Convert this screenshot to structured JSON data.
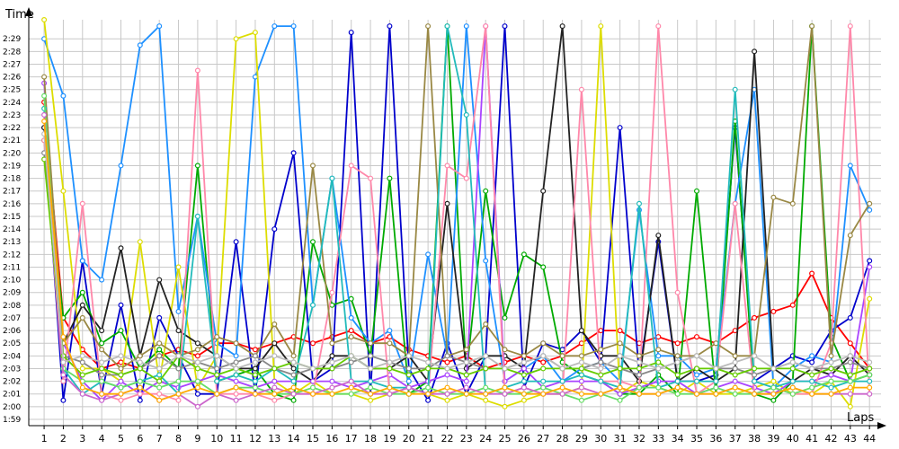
{
  "chart_data": {
    "type": "line",
    "ylabel": "Time",
    "xlabel": "Laps",
    "x": [
      1,
      2,
      3,
      4,
      5,
      6,
      7,
      8,
      9,
      10,
      11,
      12,
      13,
      14,
      15,
      16,
      17,
      18,
      19,
      20,
      21,
      22,
      23,
      24,
      25,
      26,
      27,
      28,
      29,
      30,
      31,
      32,
      33,
      34,
      35,
      36,
      37,
      38,
      39,
      40,
      41,
      42,
      43,
      44
    ],
    "y_ticks": [
      "1:59",
      "2:00",
      "2:01",
      "2:02",
      "2:03",
      "2:04",
      "2:05",
      "2:06",
      "2:07",
      "2:08",
      "2:09",
      "2:10",
      "2:11",
      "2:12",
      "2:13",
      "2:14",
      "2:15",
      "2:16",
      "2:17",
      "2:18",
      "2:19",
      "2:20",
      "2:21",
      "2:22",
      "2:23",
      "2:24",
      "2:25",
      "2:26",
      "2:27",
      "2:28",
      "2:29"
    ],
    "y_unit": "seconds",
    "ylim": [
      118.5,
      150.5
    ],
    "xlim": [
      0.2,
      44.6
    ],
    "grid": true,
    "legend": "none",
    "series": [
      {
        "color": "#ff0000",
        "values": [
          144.0,
          127.0,
          124.5,
          123.0,
          123.5,
          123.0,
          124.0,
          124.5,
          124.0,
          125.0,
          125.0,
          124.5,
          125.0,
          125.5,
          125.0,
          125.5,
          126.0,
          125.0,
          125.5,
          124.5,
          124.0,
          123.5,
          124.0,
          123.0,
          123.5,
          124.0,
          123.5,
          124.0,
          125.0,
          126.0,
          126.0,
          125.0,
          125.5,
          125.0,
          125.5,
          125.0,
          126.0,
          127.0,
          127.5,
          128.0,
          130.5,
          127.0,
          125.0,
          123.0
        ]
      },
      {
        "color": "#0000cc",
        "values": [
          142.0,
          120.5,
          131.5,
          121.0,
          128.0,
          120.5,
          127.0,
          124.0,
          121.0,
          121.0,
          133.0,
          121.0,
          134.0,
          140.0,
          122.0,
          123.0,
          149.5,
          121.0,
          150.0,
          123.0,
          120.5,
          125.0,
          121.0,
          124.0,
          150.0,
          121.5,
          125.0,
          124.5,
          126.0,
          123.5,
          142.0,
          122.5,
          133.0,
          122.0,
          122.0,
          122.5,
          142.0,
          122.0,
          123.0,
          124.0,
          123.5,
          126.0,
          127.0,
          131.5
        ]
      },
      {
        "color": "#00aa00",
        "values": [
          141.0,
          127.0,
          129.0,
          125.0,
          126.0,
          123.0,
          124.5,
          123.0,
          139.0,
          122.0,
          122.5,
          123.0,
          121.0,
          120.5,
          133.0,
          128.0,
          128.5,
          124.0,
          138.0,
          121.0,
          122.0,
          150.0,
          122.5,
          137.0,
          127.0,
          132.0,
          131.0,
          123.5,
          122.5,
          122.0,
          121.0,
          121.0,
          122.5,
          121.0,
          137.0,
          121.0,
          142.5,
          121.0,
          120.5,
          122.0,
          150.0,
          125.5,
          122.0,
          122.5
        ]
      },
      {
        "color": "#1e90ff",
        "values": [
          149.0,
          144.5,
          131.5,
          130.0,
          139.0,
          148.5,
          150.0,
          127.5,
          135.0,
          125.0,
          124.0,
          146.0,
          150.0,
          150.0,
          128.0,
          138.0,
          127.0,
          125.0,
          126.0,
          122.0,
          132.0,
          124.0,
          150.0,
          131.5,
          122.0,
          123.0,
          124.0,
          122.0,
          123.0,
          123.5,
          122.0,
          135.5,
          124.0,
          124.0,
          122.5,
          123.0,
          136.0,
          145.0,
          121.5,
          123.0,
          124.0,
          123.5,
          139.0,
          135.5
        ]
      },
      {
        "color": "#dddd00",
        "values": [
          150.5,
          137.0,
          123.0,
          123.0,
          122.0,
          133.0,
          122.0,
          131.0,
          121.5,
          124.0,
          149.0,
          149.5,
          122.0,
          121.0,
          122.0,
          121.0,
          121.0,
          120.5,
          121.0,
          121.5,
          121.0,
          120.5,
          121.0,
          120.5,
          120.0,
          120.5,
          121.0,
          121.0,
          121.5,
          150.0,
          121.0,
          122.0,
          121.5,
          121.0,
          122.0,
          121.0,
          121.0,
          121.5,
          122.0,
          121.0,
          121.0,
          122.0,
          120.0,
          128.5
        ]
      },
      {
        "color": "#222222",
        "values": [
          142.0,
          125.0,
          128.0,
          126.0,
          132.5,
          124.0,
          130.0,
          126.0,
          125.0,
          124.0,
          123.0,
          123.0,
          125.0,
          123.0,
          122.0,
          124.0,
          124.0,
          123.0,
          123.0,
          124.0,
          122.0,
          136.0,
          123.0,
          124.0,
          124.0,
          123.0,
          137.0,
          150.0,
          126.0,
          124.0,
          124.0,
          122.0,
          133.5,
          122.0,
          123.0,
          122.0,
          123.0,
          148.0,
          123.0,
          122.0,
          123.0,
          122.5,
          124.0,
          122.5
        ]
      },
      {
        "color": "#aa44ff",
        "values": [
          145.5,
          125.0,
          122.0,
          120.5,
          122.0,
          121.0,
          122.0,
          121.5,
          122.0,
          122.5,
          122.0,
          121.5,
          122.0,
          122.0,
          122.0,
          122.0,
          121.5,
          122.0,
          122.5,
          121.5,
          122.0,
          122.5,
          122.0,
          150.0,
          122.0,
          123.0,
          121.5,
          122.0,
          122.0,
          122.0,
          121.0,
          121.5,
          122.0,
          122.0,
          121.0,
          121.5,
          122.0,
          121.5,
          121.0,
          122.0,
          122.0,
          122.5,
          122.0,
          131.0
        ]
      },
      {
        "color": "#ff88aa",
        "values": [
          141.0,
          122.0,
          136.0,
          121.0,
          120.5,
          121.0,
          121.0,
          120.5,
          146.5,
          121.0,
          121.0,
          121.0,
          120.5,
          121.0,
          121.0,
          129.0,
          139.0,
          138.0,
          121.0,
          121.5,
          121.0,
          139.0,
          138.0,
          150.0,
          121.0,
          121.5,
          121.0,
          121.0,
          145.0,
          122.0,
          122.0,
          121.5,
          150.0,
          129.0,
          121.0,
          122.0,
          136.0,
          121.0,
          121.5,
          121.0,
          121.0,
          125.0,
          150.0,
          121.0
        ]
      },
      {
        "color": "#998844",
        "values": [
          146.0,
          125.0,
          127.0,
          124.5,
          123.0,
          124.0,
          125.0,
          124.0,
          124.5,
          125.5,
          125.0,
          124.0,
          126.5,
          124.0,
          139.0,
          125.0,
          125.5,
          125.0,
          125.0,
          124.0,
          150.0,
          124.0,
          124.5,
          126.5,
          124.5,
          124.0,
          125.0,
          124.0,
          124.0,
          124.5,
          125.0,
          124.0,
          124.5,
          124.0,
          124.0,
          125.0,
          124.0,
          124.0,
          136.5,
          136.0,
          150.0,
          124.0,
          133.5,
          136.0
        ]
      },
      {
        "color": "#22bbbb",
        "values": [
          143.5,
          123.0,
          121.0,
          122.0,
          121.5,
          122.0,
          122.5,
          121.0,
          135.0,
          122.0,
          122.5,
          122.0,
          123.0,
          122.0,
          128.0,
          138.0,
          122.0,
          122.0,
          121.5,
          121.5,
          121.0,
          150.0,
          143.0,
          121.0,
          121.5,
          122.0,
          122.0,
          122.0,
          122.5,
          122.0,
          121.5,
          136.0,
          121.5,
          122.0,
          122.0,
          122.0,
          145.0,
          122.0,
          121.5,
          122.0,
          122.0,
          121.5,
          122.0,
          122.0
        ]
      },
      {
        "color": "#888888",
        "values": [
          140.0,
          124.0,
          123.5,
          122.5,
          122.5,
          123.0,
          124.0,
          123.0,
          123.5,
          123.0,
          123.5,
          124.0,
          123.0,
          122.5,
          123.0,
          123.0,
          123.5,
          124.0,
          123.5,
          123.0,
          123.0,
          124.0,
          123.5,
          123.0,
          123.0,
          123.5,
          124.0,
          123.0,
          123.0,
          123.5,
          123.0,
          122.5,
          123.0,
          123.5,
          124.0,
          123.0,
          123.0,
          122.5,
          123.0,
          123.5,
          123.0,
          123.0,
          123.5,
          123.0
        ]
      },
      {
        "color": "#66dd66",
        "values": [
          144.5,
          123.0,
          122.0,
          122.0,
          121.5,
          122.0,
          121.5,
          122.0,
          122.0,
          121.0,
          121.5,
          121.5,
          121.0,
          121.0,
          121.5,
          121.0,
          121.0,
          121.5,
          121.0,
          121.0,
          121.5,
          121.0,
          121.0,
          121.5,
          121.0,
          121.0,
          121.5,
          121.0,
          120.5,
          121.0,
          120.5,
          121.5,
          121.5,
          121.0,
          121.0,
          121.5,
          121.0,
          121.0,
          121.5,
          121.0,
          121.5,
          122.0,
          122.0,
          122.5
        ]
      },
      {
        "color": "#cc66cc",
        "values": [
          143.0,
          122.5,
          121.0,
          120.5,
          121.0,
          121.5,
          120.5,
          121.0,
          120.0,
          121.0,
          120.5,
          121.0,
          121.5,
          121.0,
          121.0,
          121.5,
          122.0,
          121.0,
          121.0,
          121.5,
          121.0,
          121.0,
          121.5,
          121.0,
          121.0,
          121.5,
          121.0,
          121.0,
          121.5,
          121.0,
          121.5,
          121.0,
          121.0,
          121.5,
          121.0,
          121.0,
          121.5,
          121.0,
          121.0,
          121.5,
          121.0,
          121.0,
          121.0,
          121.0
        ]
      },
      {
        "color": "#66cc00",
        "values": [
          139.5,
          124.0,
          122.5,
          123.0,
          122.5,
          123.0,
          122.0,
          124.0,
          123.0,
          122.5,
          123.0,
          122.5,
          123.0,
          123.5,
          123.0,
          123.0,
          124.0,
          123.0,
          123.0,
          122.5,
          123.0,
          123.0,
          122.5,
          123.0,
          123.0,
          122.5,
          123.0,
          123.0,
          123.0,
          122.5,
          123.0,
          123.0,
          123.5,
          122.5,
          123.0,
          123.0,
          122.5,
          123.0,
          123.0,
          123.0,
          122.5,
          123.0,
          122.5,
          123.0
        ]
      },
      {
        "color": "#bbbbbb",
        "values": [
          141.5,
          123.5,
          124.0,
          123.5,
          124.0,
          123.5,
          123.0,
          124.0,
          123.5,
          124.0,
          123.0,
          123.5,
          124.0,
          123.5,
          123.0,
          123.5,
          124.0,
          123.0,
          123.5,
          124.0,
          123.5,
          123.0,
          123.5,
          124.0,
          123.0,
          123.5,
          124.0,
          123.0,
          123.5,
          123.0,
          124.0,
          123.5,
          123.0,
          123.5,
          124.0,
          123.0,
          123.5,
          124.0,
          123.0,
          123.5,
          123.0,
          123.5,
          124.0,
          123.5
        ]
      },
      {
        "color": "#ffaa00",
        "values": [
          142.5,
          125.5,
          121.5,
          121.0,
          121.0,
          121.5,
          120.5,
          121.0,
          121.5,
          121.0,
          121.5,
          121.0,
          121.0,
          121.5,
          121.0,
          121.0,
          121.5,
          121.0,
          121.5,
          121.0,
          121.0,
          121.5,
          121.0,
          121.0,
          121.5,
          121.0,
          121.0,
          121.5,
          121.0,
          121.0,
          121.5,
          121.0,
          121.0,
          121.5,
          121.0,
          121.0,
          121.5,
          121.0,
          121.0,
          121.5,
          121.0,
          121.0,
          121.5,
          121.5
        ]
      }
    ]
  }
}
